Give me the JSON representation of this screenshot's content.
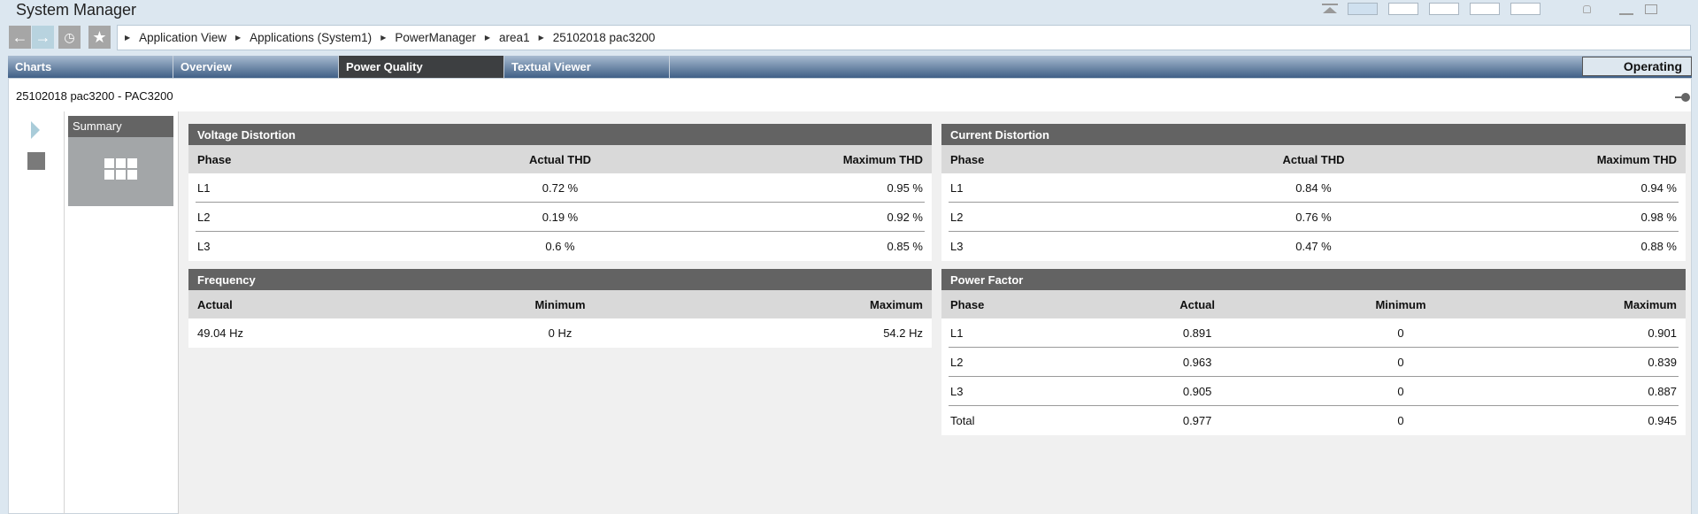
{
  "window": {
    "title": "System Manager"
  },
  "toolbar": {
    "breadcrumb": [
      "Application View",
      "Applications (System1)",
      "PowerManager",
      "area1",
      "25102018 pac3200"
    ]
  },
  "tabs": [
    {
      "label": "Charts"
    },
    {
      "label": "Overview"
    },
    {
      "label": "Power Quality",
      "active": true
    },
    {
      "label": "Textual Viewer"
    }
  ],
  "status": {
    "label": "Operating"
  },
  "header": {
    "title": "25102018 pac3200 - PAC3200"
  },
  "sidebar": {
    "summary_label": "Summary"
  },
  "voltage": {
    "title": "Voltage Distortion",
    "columns": [
      "Phase",
      "Actual THD",
      "Maximum THD"
    ],
    "rows": [
      [
        "L1",
        "0.72 %",
        "0.95 %"
      ],
      [
        "L2",
        "0.19 %",
        "0.92 %"
      ],
      [
        "L3",
        "0.6 %",
        "0.85 %"
      ]
    ]
  },
  "current": {
    "title": "Current Distortion",
    "columns": [
      "Phase",
      "Actual THD",
      "Maximum THD"
    ],
    "rows": [
      [
        "L1",
        "0.84 %",
        "0.94 %"
      ],
      [
        "L2",
        "0.76 %",
        "0.98 %"
      ],
      [
        "L3",
        "0.47 %",
        "0.88 %"
      ]
    ]
  },
  "frequency": {
    "title": "Frequency",
    "columns": [
      "Actual",
      "Minimum",
      "Maximum"
    ],
    "rows": [
      [
        "49.04 Hz",
        "0 Hz",
        "54.2 Hz"
      ]
    ]
  },
  "power_factor": {
    "title": "Power Factor",
    "columns": [
      "Phase",
      "Actual",
      "Minimum",
      "Maximum"
    ],
    "rows": [
      [
        "L1",
        "0.891",
        "0",
        "0.901"
      ],
      [
        "L2",
        "0.963",
        "0",
        "0.839"
      ],
      [
        "L3",
        "0.905",
        "0",
        "0.887"
      ],
      [
        "Total",
        "0.977",
        "0",
        "0.945"
      ]
    ]
  },
  "colors": {
    "tab_active": "#3d3f41",
    "panel_header": "#636363",
    "tabbar_top": "#a8bbd0",
    "tabbar_bottom": "#3f5f86"
  }
}
